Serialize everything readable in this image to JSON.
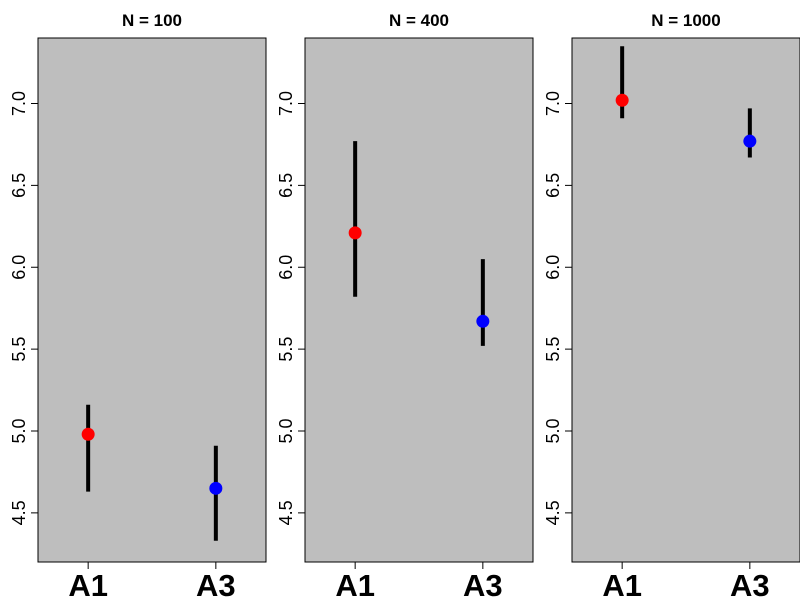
{
  "chart_data": [
    {
      "type": "scatter",
      "title": "N = 100",
      "categories": [
        "A1",
        "A3"
      ],
      "points": [
        {
          "category": "A1",
          "value": 4.98,
          "lower": 4.63,
          "upper": 5.16,
          "color": "#ff0000"
        },
        {
          "category": "A3",
          "value": 4.65,
          "lower": 4.33,
          "upper": 4.91,
          "color": "#0000ff"
        }
      ],
      "yticks": [
        "4.5",
        "5.0",
        "5.5",
        "6.0",
        "6.5",
        "7.0"
      ],
      "ylim": [
        4.2,
        7.4
      ],
      "background": "#bebebe",
      "grid": false
    },
    {
      "type": "scatter",
      "title": "N = 400",
      "categories": [
        "A1",
        "A3"
      ],
      "points": [
        {
          "category": "A1",
          "value": 6.21,
          "lower": 5.82,
          "upper": 6.77,
          "color": "#ff0000"
        },
        {
          "category": "A3",
          "value": 5.67,
          "lower": 5.52,
          "upper": 6.05,
          "color": "#0000ff"
        }
      ],
      "yticks": [
        "4.5",
        "5.0",
        "5.5",
        "6.0",
        "6.5",
        "7.0"
      ],
      "ylim": [
        4.2,
        7.4
      ],
      "background": "#bebebe",
      "grid": false
    },
    {
      "type": "scatter",
      "title": "N = 1000",
      "categories": [
        "A1",
        "A3"
      ],
      "points": [
        {
          "category": "A1",
          "value": 7.02,
          "lower": 6.91,
          "upper": 7.35,
          "color": "#ff0000"
        },
        {
          "category": "A3",
          "value": 6.77,
          "lower": 6.67,
          "upper": 6.97,
          "color": "#0000ff"
        }
      ],
      "yticks": [
        "4.5",
        "5.0",
        "5.5",
        "6.0",
        "6.5",
        "7.0"
      ],
      "ylim": [
        4.2,
        7.4
      ],
      "background": "#bebebe",
      "grid": false
    }
  ]
}
